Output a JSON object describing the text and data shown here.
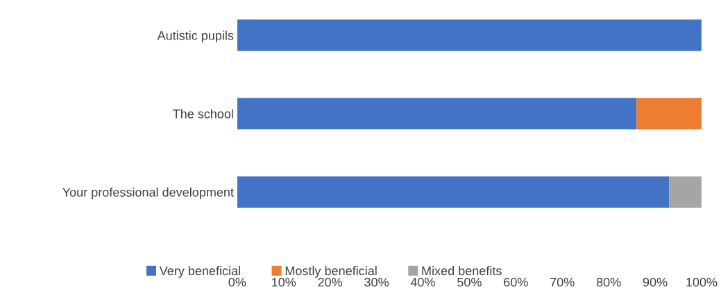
{
  "chart_data": {
    "type": "bar",
    "orientation": "horizontal",
    "stacked": true,
    "categories": [
      "Autistic pupils",
      "The school",
      "Your professional development"
    ],
    "series": [
      {
        "name": "Very beneficial",
        "color": "#4472c4",
        "values": [
          100,
          86,
          93
        ]
      },
      {
        "name": "Mostly beneficial",
        "color": "#ed7d31",
        "values": [
          0,
          14,
          0
        ]
      },
      {
        "name": "Mixed benefits",
        "color": "#a5a5a5",
        "values": [
          0,
          0,
          7
        ]
      }
    ],
    "xlim": [
      0,
      100
    ],
    "xticks": [
      {
        "value": 0,
        "label": "0%"
      },
      {
        "value": 10,
        "label": "10%"
      },
      {
        "value": 20,
        "label": "20%"
      },
      {
        "value": 30,
        "label": "30%"
      },
      {
        "value": 40,
        "label": "40%"
      },
      {
        "value": 50,
        "label": "50%"
      },
      {
        "value": 60,
        "label": "60%"
      },
      {
        "value": 70,
        "label": "70%"
      },
      {
        "value": 80,
        "label": "80%"
      },
      {
        "value": 90,
        "label": "90%"
      },
      {
        "value": 100,
        "label": "100%"
      }
    ],
    "grid": false,
    "legend": "bottom"
  }
}
